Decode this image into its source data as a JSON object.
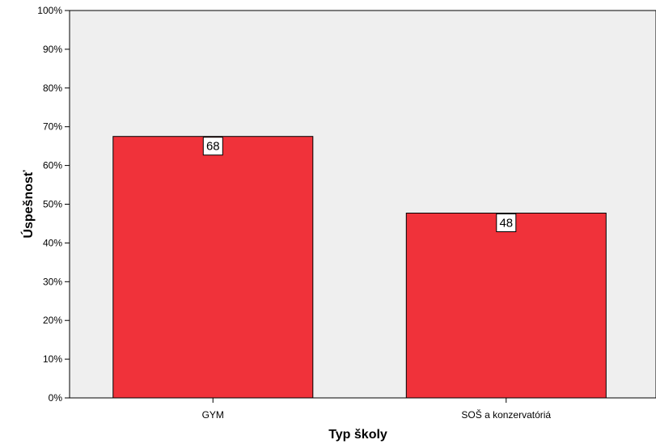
{
  "chart_data": {
    "type": "bar",
    "title": "",
    "xlabel": "Typ školy",
    "ylabel": "Úspešnosť",
    "categories": [
      "GYM",
      "SOŠ a konzervatóriá"
    ],
    "series": [
      {
        "values": [
          67.5,
          47.7
        ],
        "data_labels": [
          "68",
          "48"
        ]
      }
    ],
    "ylim": [
      0,
      100
    ],
    "yticks": [
      0,
      10,
      20,
      30,
      40,
      50,
      60,
      70,
      80,
      90,
      100
    ],
    "ytick_labels": [
      "0%",
      "10%",
      "20%",
      "30%",
      "40%",
      "50%",
      "60%",
      "70%",
      "80%",
      "90%",
      "100%"
    ],
    "grid": false,
    "legend": "none",
    "colors": {
      "bar": "#f0323a",
      "plot_background": "#efefef",
      "axis": "#000000"
    }
  }
}
